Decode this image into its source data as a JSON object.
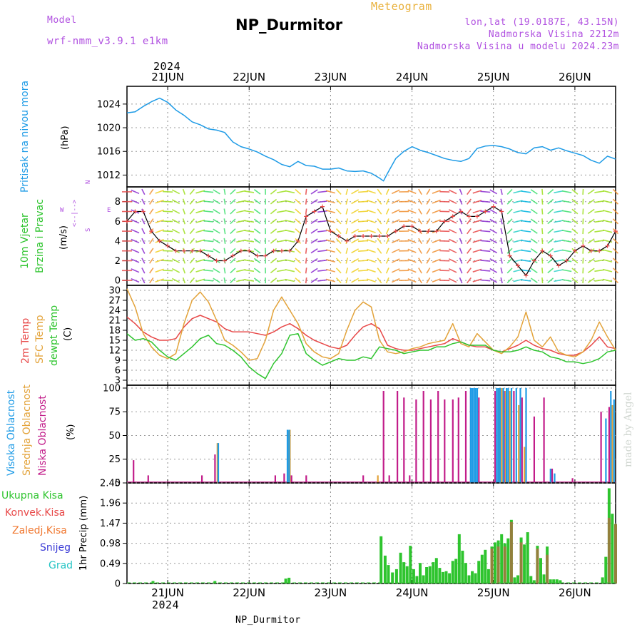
{
  "header": {
    "model_label": "Model",
    "model_name": "wrf-nmm_v3.9.1  e1km",
    "title": "NP_Durmitor",
    "meteogram_label": "Meteogram",
    "coords": "lon,lat (19.0187E, 43.15N)",
    "elevation": "Nadmorska Visina 2212m",
    "model_elevation": "Nadmorska Visina u modelu 2024.23m",
    "year_top": "2024",
    "year_bottom": "2024",
    "footer_station": "NP_Durmitor",
    "watermark": "made by Angel"
  },
  "colors": {
    "pressure": "#1e9be6",
    "temp2m": "#e84848",
    "sfc": "#e3a33a",
    "dewpt": "#2ec42e",
    "high_cloud": "#1e9be6",
    "mid_cloud": "#e3a33a",
    "low_cloud": "#c21d8a",
    "total_rain": "#2ec42e",
    "conv_rain": "#e84848",
    "frz_rain": "#f07830",
    "snow": "#3b3bd6",
    "graupel": "#25c4c4",
    "model_label": "#b050e0",
    "meteogram": "#e9b13c"
  },
  "chart_data": [
    {
      "type": "line",
      "name": "pressure",
      "labels": [
        "Pritisak na nivou mora",
        "(hPa)"
      ],
      "ylim": [
        1010,
        1027
      ],
      "yticks": [
        1012,
        1016,
        1020,
        1024
      ],
      "x_day_labels": [
        "21JUN",
        "22JUN",
        "23JUN",
        "24JUN",
        "25JUN",
        "26JUN"
      ],
      "x": [
        20.5,
        20.6,
        20.7,
        20.8,
        20.9,
        21.0,
        21.1,
        21.2,
        21.3,
        21.4,
        21.5,
        21.6,
        21.7,
        21.8,
        21.9,
        22.0,
        22.1,
        22.2,
        22.3,
        22.4,
        22.5,
        22.6,
        22.7,
        22.8,
        22.9,
        23.0,
        23.1,
        23.2,
        23.3,
        23.4,
        23.5,
        23.6,
        23.65,
        23.7,
        23.8,
        23.9,
        24.0,
        24.1,
        24.2,
        24.3,
        24.4,
        24.5,
        24.6,
        24.7,
        24.8,
        24.9,
        25.0,
        25.1,
        25.2,
        25.3,
        25.4,
        25.5,
        25.6,
        25.7,
        25.8,
        25.9,
        26.0,
        26.1,
        26.2,
        26.3,
        26.4,
        26.5
      ],
      "y": [
        1022.5,
        1022.7,
        1023.6,
        1024.4,
        1025.0,
        1024.3,
        1023.0,
        1022.1,
        1021.0,
        1020.5,
        1019.8,
        1019.6,
        1019.2,
        1017.6,
        1016.8,
        1016.4,
        1015.9,
        1015.2,
        1014.6,
        1013.8,
        1013.4,
        1014.3,
        1013.6,
        1013.5,
        1013.0,
        1013.0,
        1013.2,
        1012.7,
        1012.6,
        1012.7,
        1012.3,
        1011.5,
        1011.0,
        1012.3,
        1014.8,
        1016.0,
        1016.8,
        1016.2,
        1015.8,
        1015.3,
        1014.8,
        1014.5,
        1014.3,
        1014.8,
        1016.5,
        1016.9,
        1017.0,
        1016.8,
        1016.4,
        1015.8,
        1015.6,
        1016.6,
        1016.8,
        1016.2,
        1016.6,
        1016.1,
        1015.7,
        1015.3,
        1014.5,
        1014.0,
        1015.2,
        1014.7
      ]
    },
    {
      "type": "line",
      "name": "wind",
      "labels": [
        "10m Vjetar",
        "Brzina i Pravac",
        "(m/s)"
      ],
      "compass": [
        "N",
        "<--|-->",
        "W",
        "E",
        "S"
      ],
      "ylim": [
        -0.5,
        9.5
      ],
      "yticks": [
        0,
        2,
        4,
        6,
        8
      ],
      "x": [
        20.5,
        20.6,
        20.7,
        20.8,
        20.9,
        21.0,
        21.1,
        21.2,
        21.3,
        21.4,
        21.5,
        21.6,
        21.7,
        21.8,
        21.9,
        22.0,
        22.1,
        22.2,
        22.3,
        22.4,
        22.5,
        22.6,
        22.7,
        22.8,
        22.9,
        23.0,
        23.1,
        23.2,
        23.3,
        23.4,
        23.5,
        23.6,
        23.7,
        23.8,
        23.9,
        24.0,
        24.1,
        24.2,
        24.3,
        24.4,
        24.5,
        24.6,
        24.7,
        24.8,
        24.9,
        25.0,
        25.1,
        25.2,
        25.3,
        25.4,
        25.5,
        25.6,
        25.7,
        25.8,
        25.9,
        26.0,
        26.1,
        26.2,
        26.3,
        26.4,
        26.5
      ],
      "speed": [
        6.0,
        7.0,
        7.0,
        5.0,
        4.0,
        3.5,
        3.0,
        3.0,
        3.0,
        3.0,
        2.5,
        2.0,
        2.0,
        2.5,
        3.0,
        3.0,
        2.5,
        2.5,
        3.0,
        3.0,
        3.0,
        4.0,
        6.5,
        7.0,
        7.5,
        5.0,
        4.5,
        4.0,
        4.5,
        4.5,
        4.5,
        4.5,
        4.5,
        5.0,
        5.5,
        5.5,
        5.0,
        5.0,
        5.0,
        6.0,
        6.5,
        7.0,
        6.5,
        6.5,
        7.0,
        7.5,
        7.0,
        2.5,
        1.5,
        0.5,
        2.0,
        3.0,
        2.5,
        1.5,
        2.0,
        3.0,
        3.5,
        3.0,
        3.0,
        3.5,
        5.0
      ]
    },
    {
      "type": "line",
      "name": "temperature",
      "labels": [
        "2m Temp",
        "SFC Temp",
        "dewpt Temp",
        "(C)"
      ],
      "ylim": [
        1.5,
        31.5
      ],
      "yticks": [
        3,
        6,
        9,
        12,
        15,
        18,
        21,
        24,
        27,
        30
      ],
      "series": [
        {
          "name": "2m Temp",
          "x": [
            20.5,
            20.6,
            20.7,
            20.8,
            20.9,
            21.0,
            21.1,
            21.2,
            21.3,
            21.4,
            21.5,
            21.6,
            21.7,
            21.8,
            21.9,
            22.0,
            22.1,
            22.2,
            22.3,
            22.4,
            22.5,
            22.6,
            22.7,
            22.8,
            22.9,
            23.0,
            23.1,
            23.2,
            23.3,
            23.4,
            23.5,
            23.6,
            23.7,
            23.8,
            23.9,
            24.0,
            24.1,
            24.2,
            24.3,
            24.4,
            24.5,
            24.6,
            24.7,
            24.8,
            24.9,
            25.0,
            25.1,
            25.2,
            25.3,
            25.4,
            25.5,
            25.6,
            25.7,
            25.8,
            25.9,
            26.0,
            26.1,
            26.2,
            26.3,
            26.4,
            26.5
          ],
          "y": [
            22,
            20,
            17.5,
            16,
            15,
            15,
            15.5,
            19,
            21.5,
            22.5,
            21.5,
            20.5,
            18.5,
            17.5,
            17.5,
            17.5,
            17,
            16.5,
            17.5,
            19,
            20,
            18.5,
            16.5,
            15,
            14,
            13,
            12.5,
            13.5,
            16.5,
            19,
            20,
            18.5,
            13.5,
            12.5,
            12,
            12,
            12.5,
            13,
            13.5,
            14,
            15.5,
            14.5,
            13.5,
            13,
            13,
            12,
            11.5,
            12.5,
            13.5,
            15,
            13.5,
            12.5,
            12,
            11,
            10.5,
            10.5,
            11.5,
            13.5,
            16,
            13,
            12.5
          ]
        },
        {
          "name": "SFC Temp",
          "x": [
            20.5,
            20.6,
            20.7,
            20.8,
            20.9,
            21.0,
            21.1,
            21.2,
            21.3,
            21.4,
            21.5,
            21.6,
            21.7,
            21.8,
            21.9,
            22.0,
            22.1,
            22.2,
            22.3,
            22.4,
            22.5,
            22.6,
            22.7,
            22.8,
            22.9,
            23.0,
            23.1,
            23.2,
            23.3,
            23.4,
            23.5,
            23.6,
            23.7,
            23.8,
            23.9,
            24.0,
            24.1,
            24.2,
            24.3,
            24.4,
            24.5,
            24.6,
            24.7,
            24.8,
            24.9,
            25.0,
            25.1,
            25.2,
            25.3,
            25.4,
            25.5,
            25.6,
            25.7,
            25.8,
            25.9,
            26.0,
            26.1,
            26.2,
            26.3,
            26.4,
            26.5
          ],
          "y": [
            30.5,
            25,
            17,
            13,
            10.5,
            9.5,
            11,
            20,
            27,
            29.5,
            26.5,
            21,
            15,
            13.5,
            11.5,
            9,
            9.5,
            15,
            24,
            28,
            24,
            20,
            14,
            11.5,
            10,
            9.5,
            11,
            18,
            24,
            26.5,
            25,
            15,
            11.5,
            11,
            11.5,
            12.5,
            13,
            14,
            14.5,
            15,
            20,
            14,
            13,
            17,
            14.5,
            12,
            11,
            13,
            16,
            23.5,
            15,
            13,
            16,
            11.5,
            10.5,
            10,
            11.5,
            15,
            20.5,
            16,
            12
          ]
        },
        {
          "name": "dewpt Temp",
          "x": [
            20.5,
            20.6,
            20.7,
            20.8,
            20.9,
            21.0,
            21.1,
            21.2,
            21.3,
            21.4,
            21.5,
            21.6,
            21.7,
            21.8,
            21.9,
            22.0,
            22.1,
            22.2,
            22.3,
            22.4,
            22.5,
            22.6,
            22.7,
            22.8,
            22.9,
            23.0,
            23.1,
            23.2,
            23.3,
            23.4,
            23.5,
            23.6,
            23.7,
            23.8,
            23.9,
            24.0,
            24.1,
            24.2,
            24.3,
            24.4,
            24.5,
            24.6,
            24.7,
            24.8,
            24.9,
            25.0,
            25.1,
            25.2,
            25.3,
            25.4,
            25.5,
            25.6,
            25.7,
            25.8,
            25.9,
            26.0,
            26.1,
            26.2,
            26.3,
            26.4,
            26.5
          ],
          "y": [
            17,
            15,
            15.5,
            14.5,
            12,
            10,
            9,
            11,
            13,
            15.5,
            16.5,
            14,
            13.5,
            12,
            10,
            7,
            5,
            3.5,
            8,
            11,
            16.5,
            17,
            11,
            9,
            7.5,
            8.5,
            9.5,
            9,
            9,
            10,
            9.5,
            13,
            12.5,
            12,
            11,
            11.5,
            12,
            12,
            13,
            13,
            14,
            14.5,
            13.5,
            13.5,
            13.5,
            12,
            11.5,
            11.5,
            12,
            13,
            12,
            11.5,
            10,
            9.5,
            8.5,
            8.5,
            8,
            8.5,
            9.5,
            11.5,
            12
          ]
        }
      ]
    },
    {
      "type": "bar",
      "name": "cloudiness",
      "labels": [
        "Visoka Oblacnost",
        "Srednja Oblacnost",
        "Niska Oblacnost",
        "(%)"
      ],
      "ylim": [
        0,
        103
      ],
      "yticks": [
        0,
        25,
        50,
        75,
        100
      ],
      "series": [
        {
          "name": "Niska Oblacnost",
          "x": [
            20.58,
            20.76,
            21.42,
            21.58,
            22.32,
            22.43,
            22.52,
            22.7,
            23.4,
            23.65,
            23.72,
            23.82,
            23.9,
            23.97,
            24.05,
            24.14,
            24.23,
            24.32,
            24.4,
            24.5,
            24.57,
            24.66,
            24.72,
            24.82,
            25.02,
            25.13,
            25.25,
            25.35,
            25.5,
            25.62,
            25.72,
            25.97,
            26.32,
            26.42
          ],
          "y": [
            24,
            8,
            8,
            30,
            8,
            10,
            8,
            8,
            8,
            97,
            8,
            97,
            90,
            8,
            88,
            97,
            88,
            97,
            88,
            88,
            90,
            97,
            97,
            90,
            97,
            97,
            97,
            90,
            70,
            90,
            15,
            5,
            75,
            80
          ]
        },
        {
          "name": "Srednja Oblacnost",
          "x": [
            21.61,
            22.48,
            22.5,
            23.58,
            25.07,
            25.1,
            25.15,
            25.2,
            25.31,
            25.38,
            26.46
          ],
          "y": [
            42,
            55,
            56,
            8,
            100,
            100,
            97,
            97,
            82,
            38,
            82
          ]
        },
        {
          "name": "Visoka Oblacnost",
          "x": [
            21.62,
            22.47,
            22.49,
            24.72,
            24.74,
            24.76,
            24.78,
            24.8,
            25.04,
            25.06,
            25.08,
            25.12,
            25.16,
            25.18,
            25.22,
            25.28,
            25.33,
            25.4,
            25.7,
            25.75,
            26.38,
            26.44,
            26.48
          ],
          "y": [
            42,
            56,
            56,
            100,
            100,
            100,
            100,
            100,
            100,
            100,
            100,
            100,
            100,
            100,
            100,
            100,
            100,
            100,
            15,
            10,
            68,
            97,
            88
          ]
        }
      ]
    },
    {
      "type": "bar",
      "name": "precipitation",
      "labels": [
        "Ukupna Kisa",
        "Konvek.Kisa",
        "Zaledj.Kisa",
        "Snijeg",
        "Grad",
        "1hr Precip (mm)"
      ],
      "ylim": [
        0,
        2.45
      ],
      "yticks": [
        0,
        0.49,
        0.98,
        1.47,
        1.96,
        2.45
      ],
      "series": [
        {
          "name": "Ukupna Kisa",
          "x": [
            20.82,
            21.58,
            22.45,
            22.49,
            23.62,
            23.67,
            23.71,
            23.76,
            23.81,
            23.86,
            23.9,
            23.94,
            23.98,
            24.02,
            24.06,
            24.1,
            24.14,
            24.18,
            24.22,
            24.26,
            24.3,
            24.34,
            24.38,
            24.42,
            24.46,
            24.5,
            24.54,
            24.58,
            24.62,
            24.66,
            24.7,
            24.74,
            24.78,
            24.82,
            24.86,
            24.9,
            24.94,
            24.98,
            25.02,
            25.06,
            25.1,
            25.14,
            25.18,
            25.22,
            25.26,
            25.3,
            25.34,
            25.38,
            25.42,
            25.46,
            25.5,
            25.54,
            25.58,
            25.62,
            25.66,
            25.7,
            25.74,
            25.78,
            25.82,
            26.34,
            26.38,
            26.42,
            26.46,
            26.5
          ],
          "y": [
            0.06,
            0.06,
            0.12,
            0.14,
            1.15,
            0.68,
            0.45,
            0.27,
            0.35,
            0.75,
            0.52,
            0.42,
            0.92,
            0.35,
            0.18,
            0.5,
            0.2,
            0.4,
            0.42,
            0.52,
            0.62,
            0.38,
            0.28,
            0.3,
            0.25,
            0.55,
            0.6,
            1.2,
            0.8,
            0.5,
            0.2,
            0.3,
            0.25,
            0.55,
            0.7,
            0.82,
            0.35,
            0.9,
            1.0,
            1.05,
            1.2,
            0.98,
            1.1,
            1.55,
            0.15,
            0.2,
            1.12,
            0.95,
            1.25,
            0.18,
            0.08,
            0.92,
            0.62,
            0.22,
            0.9,
            0.1,
            0.1,
            0.1,
            0.08,
            0.15,
            0.65,
            2.32,
            1.7,
            1.45
          ]
        },
        {
          "name": "Konvek.Kisa",
          "x": [
            24.98,
            25.06,
            25.14,
            25.22,
            25.34,
            25.54,
            25.66,
            26.42,
            26.5
          ],
          "y": [
            0.85,
            0.9,
            0.9,
            1.5,
            1.0,
            0.85,
            0.7,
            1.6,
            1.45
          ]
        },
        {
          "name": "Zaledj.Kisa",
          "x": [],
          "y": []
        },
        {
          "name": "Snijeg",
          "x": [],
          "y": []
        },
        {
          "name": "Grad",
          "x": [],
          "y": []
        }
      ]
    }
  ]
}
